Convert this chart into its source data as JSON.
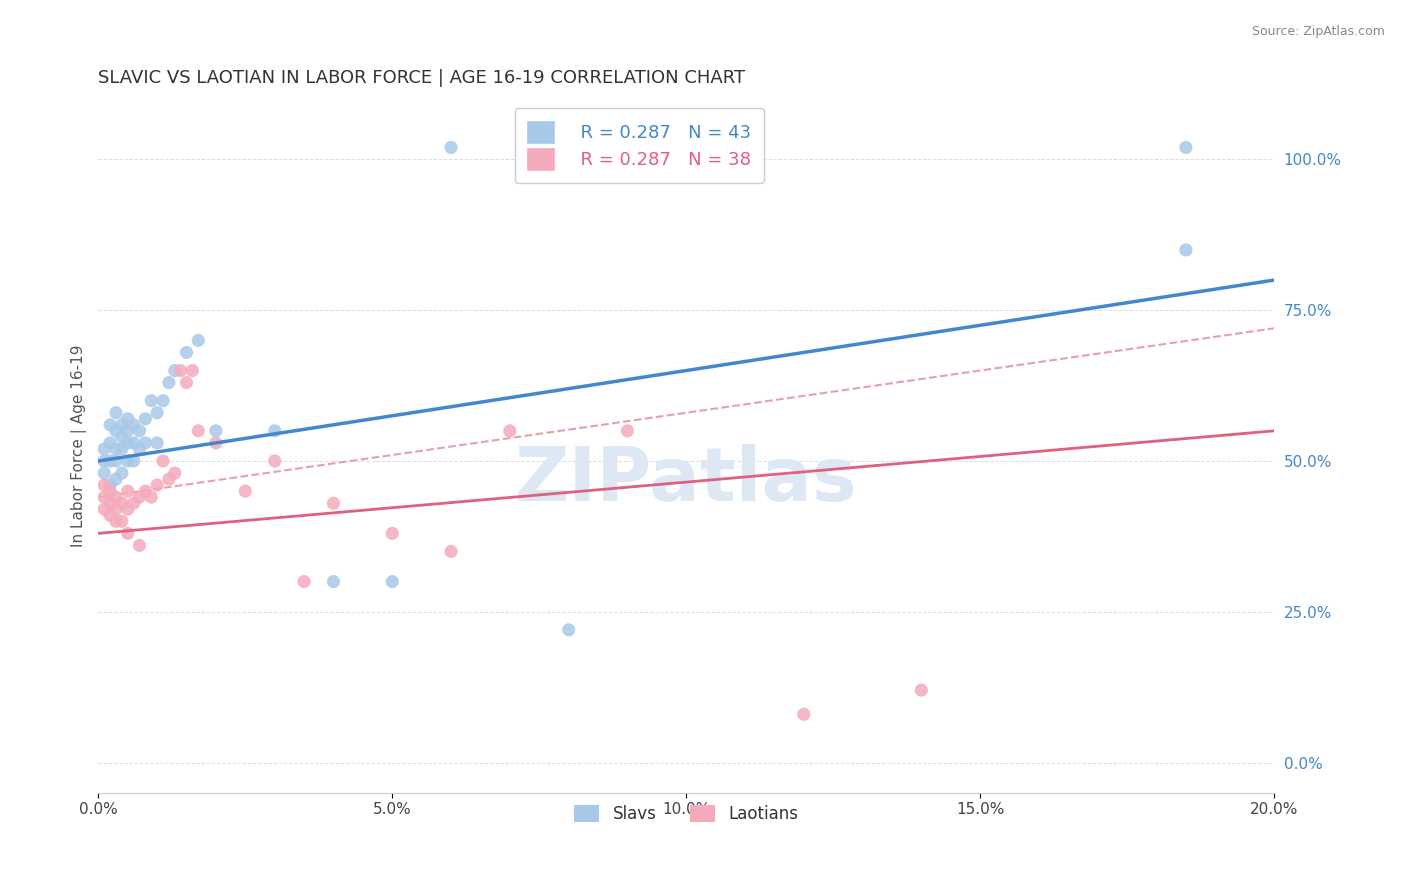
{
  "title": "SLAVIC VS LAOTIAN IN LABOR FORCE | AGE 16-19 CORRELATION CHART",
  "source": "Source: ZipAtlas.com",
  "ylabel": "In Labor Force | Age 16-19",
  "xlim": [
    0.0,
    0.2
  ],
  "ylim": [
    -0.05,
    1.1
  ],
  "xticks": [
    0.0,
    0.05,
    0.1,
    0.15,
    0.2
  ],
  "xtick_labels": [
    "0.0%",
    "5.0%",
    "10.0%",
    "15.0%",
    "20.0%"
  ],
  "yticks": [
    0.0,
    0.25,
    0.5,
    0.75,
    1.0
  ],
  "ytick_labels": [
    "0.0%",
    "25.0%",
    "50.0%",
    "75.0%",
    "100.0%"
  ],
  "legend_r_slavs": "R = 0.287",
  "legend_n_slavs": "N = 43",
  "legend_r_laotians": "R = 0.287",
  "legend_n_laotians": "N = 38",
  "slavs_color": "#a8c8e8",
  "laotians_color": "#f4aabb",
  "slavs_line_color": "#4488cc",
  "laotians_line_color": "#e06080",
  "dashed_line_color": "#e8a0a8",
  "watermark": "ZIPatlas",
  "slavs_x": [
    0.001,
    0.001,
    0.001,
    0.002,
    0.002,
    0.002,
    0.002,
    0.003,
    0.003,
    0.003,
    0.003,
    0.003,
    0.004,
    0.004,
    0.004,
    0.004,
    0.005,
    0.005,
    0.005,
    0.005,
    0.006,
    0.006,
    0.006,
    0.007,
    0.007,
    0.008,
    0.008,
    0.009,
    0.01,
    0.01,
    0.011,
    0.012,
    0.013,
    0.015,
    0.017,
    0.02,
    0.03,
    0.04,
    0.05,
    0.06,
    0.08,
    0.185,
    0.185
  ],
  "slavs_y": [
    0.48,
    0.5,
    0.52,
    0.46,
    0.5,
    0.53,
    0.56,
    0.47,
    0.5,
    0.52,
    0.55,
    0.58,
    0.48,
    0.52,
    0.54,
    0.56,
    0.5,
    0.53,
    0.55,
    0.57,
    0.5,
    0.53,
    0.56,
    0.52,
    0.55,
    0.53,
    0.57,
    0.6,
    0.53,
    0.58,
    0.6,
    0.63,
    0.65,
    0.68,
    0.7,
    0.55,
    0.55,
    0.3,
    0.3,
    1.02,
    0.22,
    0.85,
    1.02
  ],
  "laotians_x": [
    0.001,
    0.001,
    0.001,
    0.002,
    0.002,
    0.002,
    0.003,
    0.003,
    0.003,
    0.004,
    0.004,
    0.005,
    0.005,
    0.005,
    0.006,
    0.007,
    0.007,
    0.008,
    0.009,
    0.01,
    0.011,
    0.012,
    0.013,
    0.014,
    0.015,
    0.016,
    0.017,
    0.02,
    0.025,
    0.03,
    0.035,
    0.04,
    0.05,
    0.06,
    0.07,
    0.09,
    0.12,
    0.14
  ],
  "laotians_y": [
    0.42,
    0.44,
    0.46,
    0.41,
    0.43,
    0.45,
    0.4,
    0.42,
    0.44,
    0.4,
    0.43,
    0.38,
    0.42,
    0.45,
    0.43,
    0.36,
    0.44,
    0.45,
    0.44,
    0.46,
    0.5,
    0.47,
    0.48,
    0.65,
    0.63,
    0.65,
    0.55,
    0.53,
    0.45,
    0.5,
    0.3,
    0.43,
    0.38,
    0.35,
    0.55,
    0.55,
    0.08,
    0.12
  ]
}
